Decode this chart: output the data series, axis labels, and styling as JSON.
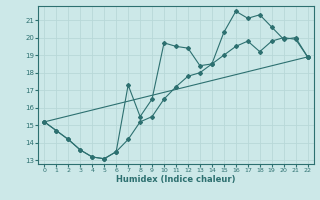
{
  "xlabel": "Humidex (Indice chaleur)",
  "bg_color": "#cce8e8",
  "grid_color": "#b8d8d8",
  "line_color": "#2d7070",
  "xlim": [
    -0.5,
    22.5
  ],
  "ylim": [
    12.8,
    21.8
  ],
  "xticks": [
    0,
    1,
    2,
    3,
    4,
    5,
    6,
    7,
    8,
    9,
    10,
    11,
    12,
    13,
    14,
    15,
    16,
    17,
    18,
    19,
    20,
    21,
    22
  ],
  "yticks": [
    13,
    14,
    15,
    16,
    17,
    18,
    19,
    20,
    21
  ],
  "line1_x": [
    0,
    1,
    2,
    3,
    4,
    5,
    6,
    7,
    8,
    9,
    10,
    11,
    12,
    13,
    14,
    15,
    16,
    17,
    18,
    19,
    20,
    21,
    22
  ],
  "line1_y": [
    15.2,
    14.7,
    14.2,
    13.6,
    13.2,
    13.1,
    13.5,
    14.2,
    15.2,
    15.5,
    16.5,
    17.2,
    17.8,
    18.0,
    18.5,
    19.0,
    19.5,
    19.8,
    19.2,
    19.8,
    20.0,
    19.9,
    18.9
  ],
  "line2_x": [
    0,
    1,
    2,
    3,
    4,
    5,
    6,
    7,
    8,
    9,
    10,
    11,
    12,
    13,
    14,
    15,
    16,
    17,
    18,
    19,
    20,
    21,
    22
  ],
  "line2_y": [
    15.2,
    14.7,
    14.2,
    13.6,
    13.2,
    13.1,
    13.5,
    17.3,
    15.5,
    16.5,
    19.7,
    19.5,
    19.4,
    18.4,
    18.5,
    20.3,
    21.5,
    21.1,
    21.3,
    20.6,
    19.9,
    20.0,
    18.9
  ],
  "line3_x": [
    0,
    22
  ],
  "line3_y": [
    15.2,
    18.9
  ]
}
